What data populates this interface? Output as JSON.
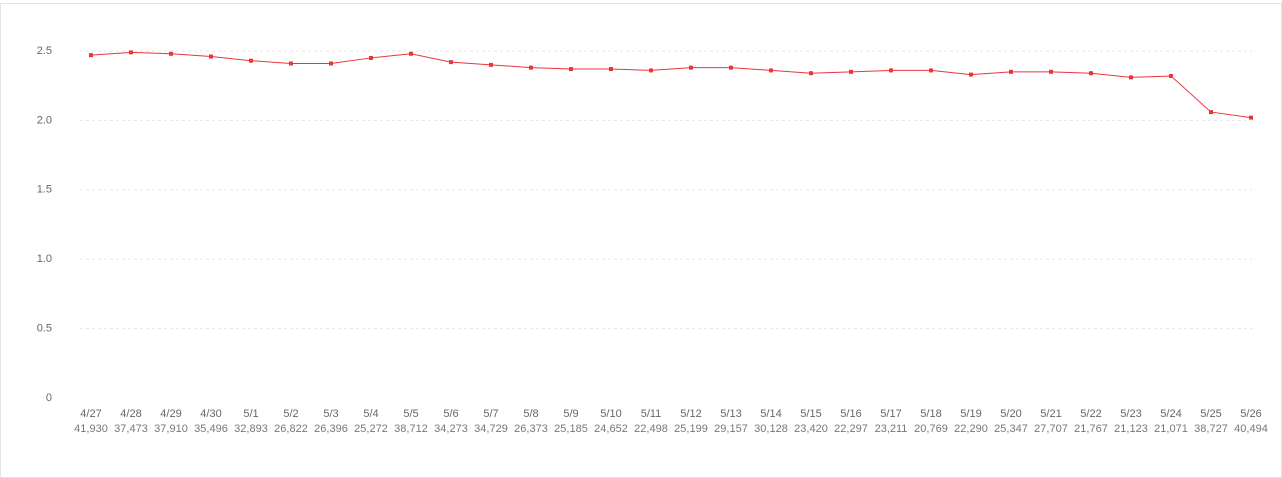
{
  "chart_data": {
    "type": "line",
    "categories": [
      "4/27",
      "4/28",
      "4/29",
      "4/30",
      "5/1",
      "5/2",
      "5/3",
      "5/4",
      "5/5",
      "5/6",
      "5/7",
      "5/8",
      "5/9",
      "5/10",
      "5/11",
      "5/12",
      "5/13",
      "5/14",
      "5/15",
      "5/16",
      "5/17",
      "5/18",
      "5/19",
      "5/20",
      "5/21",
      "5/22",
      "5/23",
      "5/24",
      "5/25",
      "5/26"
    ],
    "category_sublabels": [
      "41,930",
      "37,473",
      "37,910",
      "35,496",
      "32,893",
      "26,822",
      "26,396",
      "25,272",
      "38,712",
      "34,273",
      "34,729",
      "26,373",
      "25,185",
      "24,652",
      "22,498",
      "25,199",
      "29,157",
      "30,128",
      "23,420",
      "22,297",
      "23,211",
      "20,769",
      "22,290",
      "25,347",
      "27,707",
      "21,767",
      "21,123",
      "21,071",
      "38,727",
      "40,494"
    ],
    "values": [
      2.47,
      2.49,
      2.48,
      2.46,
      2.43,
      2.41,
      2.41,
      2.45,
      2.48,
      2.42,
      2.4,
      2.38,
      2.37,
      2.37,
      2.36,
      2.38,
      2.38,
      2.36,
      2.34,
      2.35,
      2.36,
      2.36,
      2.33,
      2.35,
      2.35,
      2.34,
      2.31,
      2.32,
      2.06,
      2.02
    ],
    "color": "#e8363b",
    "ylim": [
      0,
      2.5
    ],
    "yticks": [
      0,
      0.5,
      {
        "value": 1,
        "label": "1.0"
      },
      1.5,
      {
        "value": 2,
        "label": "2.0"
      },
      2.5
    ],
    "grid": true
  }
}
